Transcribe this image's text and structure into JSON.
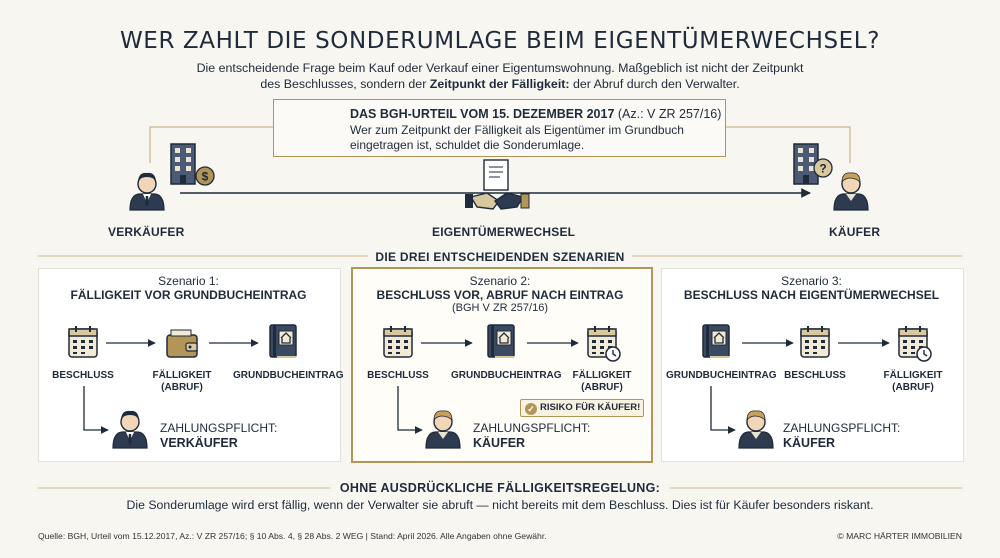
{
  "title": "WER ZAHLT DIE SONDERUMLAGE BEIM EIGENTÜMERWECHSEL?",
  "intro": {
    "line1": "Die entscheidende Frage beim Kauf oder Verkauf einer Eigentumswohnung. Maßgeblich ist nicht der Zeitpunkt",
    "line2_pre": "des Beschlusses, sondern der ",
    "line2_bold": "Zeitpunkt der Fälligkeit:",
    "line2_post": " der Abruf durch den Verwalter."
  },
  "ruling": {
    "title": "DAS BGH-URTEIL VOM 15. DEZEMBER 2017",
    "ref": "(Az.: V ZR 257/16)",
    "text": "Wer zum Zeitpunkt der Fälligkeit als Eigentümer im Grundbuch eingetragen ist, schuldet die Sonderumlage."
  },
  "parties": {
    "seller": "VERKÄUFER",
    "transfer": "EIGENTÜMERWECHSEL",
    "buyer": "KÄUFER"
  },
  "scenarios_title": "DIE DREI ENTSCHEIDENDEN SZENARIEN",
  "scenarios": [
    {
      "label": "Szenario 1:",
      "title": "FÄLLIGKEIT VOR GRUNDBUCHEINTRAG",
      "steps": [
        "BESCHLUSS",
        "FÄLLIGKEIT\n(ABRUF)",
        "GRUNDBUCHEINTRAG"
      ],
      "icons": [
        "calendar-icon",
        "wallet-icon",
        "land-register-icon"
      ],
      "pay_label": "ZAHLUNGSPFLICHT:",
      "pay_who": "VERKÄUFER"
    },
    {
      "label": "Szenario 2:",
      "title": "BESCHLUSS VOR, ABRUF NACH EINTRAG",
      "sub": "(BGH V ZR 257/16)",
      "steps": [
        "BESCHLUSS",
        "GRUNDBUCHEINTRAG",
        "FÄLLIGKEIT\n(ABRUF)"
      ],
      "icons": [
        "calendar-icon",
        "land-register-icon",
        "calendar-clock-icon"
      ],
      "pay_label": "ZAHLUNGSPFLICHT:",
      "pay_who": "KÄUFER",
      "badge": "RISIKO FÜR KÄUFER!"
    },
    {
      "label": "Szenario 3:",
      "title": "BESCHLUSS NACH EIGENTÜMERWECHSEL",
      "steps": [
        "GRUNDBUCHEINTRAG",
        "BESCHLUSS",
        "FÄLLIGKEIT\n(ABRUF)"
      ],
      "icons": [
        "land-register-icon",
        "calendar-icon",
        "calendar-clock-icon"
      ],
      "pay_label": "ZAHLUNGSPFLICHT:",
      "pay_who": "KÄUFER"
    }
  ],
  "bottom": {
    "title": "OHNE AUSDRÜCKLICHE FÄLLIGKEITSREGELUNG:",
    "text": "Die Sonderumlage wird erst fällig, wenn der Verwalter sie abruft — nicht bereits mit dem Beschluss. Dies ist für Käufer besonders riskant."
  },
  "source": "Quelle: BGH, Urteil vom 15.12.2017, Az.: V ZR 257/16; § 10 Abs. 4, § 28 Abs. 2 WEG | Stand: April 2026. Alle Angaben ohne Gewähr.",
  "copyright": "© MARC HÄRTER IMMOBILIEN",
  "colors": {
    "navy": "#1f2a3a",
    "gold": "#b39657",
    "background": "#f7f6f1",
    "tan": "#d9c7a0"
  }
}
